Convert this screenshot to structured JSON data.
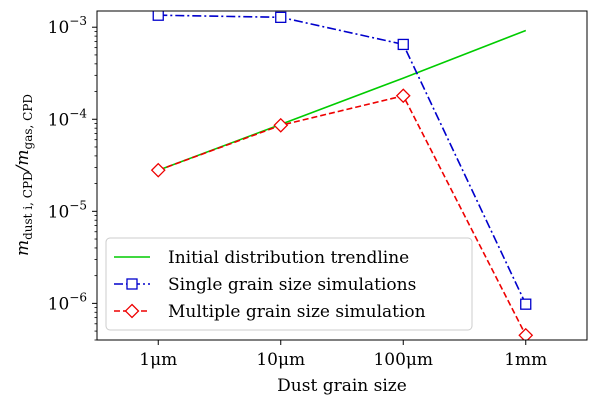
{
  "chart_data": {
    "type": "line",
    "title": "",
    "xlabel": "Dust grain size",
    "ylabel": {
      "text": "m",
      "sub1": "dust i, CPD",
      "slash": "/m",
      "sub2": "gas, CPD"
    },
    "yscale": "log",
    "ylim": [
      4e-07,
      0.0015
    ],
    "categories": [
      "1μm",
      "10μm",
      "100μm",
      "1mm"
    ],
    "xlim": [
      -0.5,
      3.5
    ],
    "yticks": [
      {
        "value": 1e-06,
        "base": "10",
        "exp": "−6"
      },
      {
        "value": 1e-05,
        "base": "10",
        "exp": "−5"
      },
      {
        "value": 0.0001,
        "base": "10",
        "exp": "−4"
      },
      {
        "value": 0.001,
        "base": "10",
        "exp": "−3"
      }
    ],
    "series": [
      {
        "name": "Initial distribution trendline",
        "color": "#00cc00",
        "style": "solid",
        "marker": "none",
        "values": [
          2.8e-05,
          8.8e-05,
          0.00028,
          0.00092
        ]
      },
      {
        "name": "Single grain size simulations",
        "color": "#0000cc",
        "style": "dashdot",
        "marker": "square",
        "values": [
          0.00135,
          0.00128,
          0.00065,
          9.8e-07
        ]
      },
      {
        "name": "Multiple grain size simulation",
        "color": "#ee0000",
        "style": "dashed",
        "marker": "diamond",
        "values": [
          2.8e-05,
          8.6e-05,
          0.00018,
          4.5e-07
        ]
      }
    ],
    "legend_position": "lower-left"
  }
}
